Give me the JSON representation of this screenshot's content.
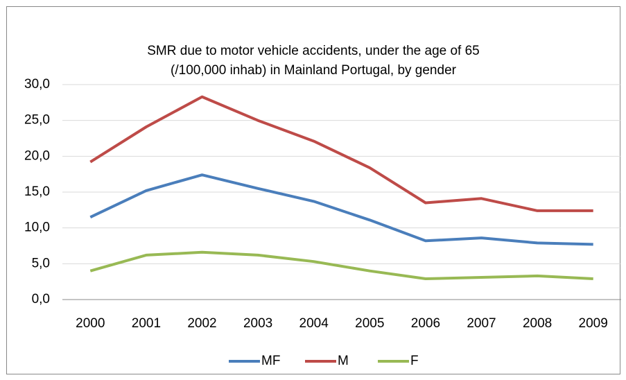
{
  "chart_data": {
    "type": "line",
    "title": "SMR due to motor vehicle accidents, under the age of 65 (/100,000 inhab) in Mainland Portugal, by gender",
    "categories": [
      "2000",
      "2001",
      "2002",
      "2003",
      "2004",
      "2005",
      "2006",
      "2007",
      "2008",
      "2009"
    ],
    "series": [
      {
        "name": "MF",
        "color": "#4a7ebb",
        "values": [
          11.5,
          15.2,
          17.4,
          15.5,
          13.7,
          11.1,
          8.2,
          8.6,
          7.9,
          7.7
        ]
      },
      {
        "name": "M",
        "color": "#be4b48",
        "values": [
          19.2,
          24.1,
          28.3,
          25.0,
          22.1,
          18.4,
          13.5,
          14.1,
          12.4,
          12.4
        ]
      },
      {
        "name": "F",
        "color": "#98b954",
        "values": [
          4.0,
          6.2,
          6.6,
          6.2,
          5.3,
          4.0,
          2.9,
          3.1,
          3.3,
          2.9
        ]
      }
    ],
    "ylim": [
      0,
      30
    ],
    "yticks": [
      {
        "value": 0,
        "label": "0,0"
      },
      {
        "value": 5,
        "label": "5,0"
      },
      {
        "value": 10,
        "label": "10,0"
      },
      {
        "value": 15,
        "label": "15,0"
      },
      {
        "value": 20,
        "label": "20,0"
      },
      {
        "value": 25,
        "label": "25,0"
      },
      {
        "value": 30,
        "label": "30,0"
      }
    ],
    "grid": true,
    "legend": "bottom"
  }
}
